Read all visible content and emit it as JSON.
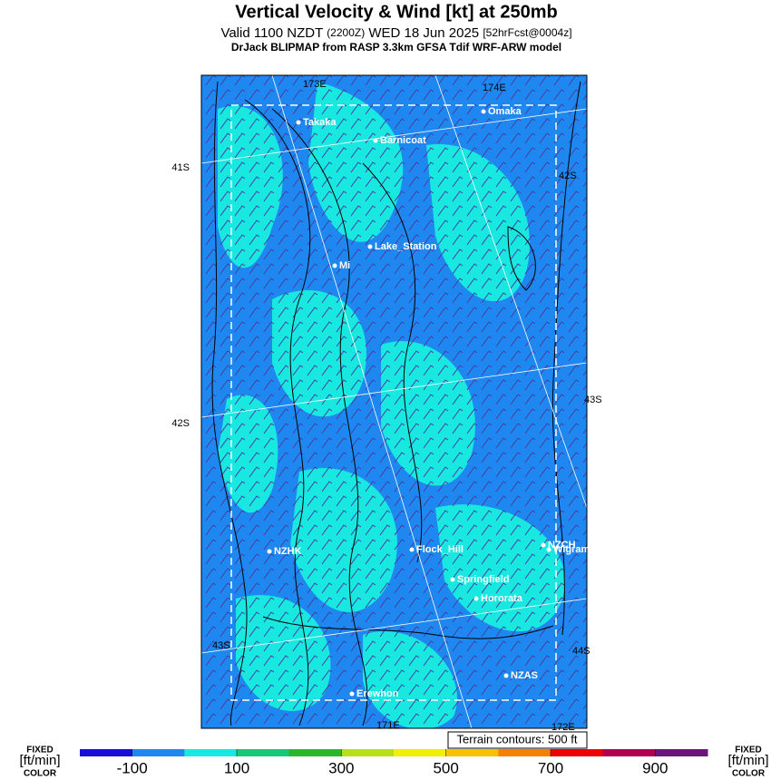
{
  "header": {
    "title": "Vertical Velocity & Wind [kt] at 250mb",
    "subtitle": [
      "Valid 1100 NZDT",
      "(2200Z)",
      "WED 18 Jun 2025",
      "[52hrFcst@0004z]"
    ],
    "model": "DrJack BLIPMAP from RASP 3.3km GFSA Tdif WRF-ARW model"
  },
  "map": {
    "places": [
      "Takaka",
      "Barnicoat",
      "Omaka",
      "Lake_Station",
      "Mi",
      "NZHK",
      "Flock_Hill",
      "Springfield",
      "Hororata",
      "NZCH",
      "Wigram",
      "NZAS",
      "Erewhon"
    ],
    "grid_labels": [
      "41S",
      "42S",
      "43S",
      "42S",
      "43S",
      "44S",
      "173E",
      "174E",
      "171E",
      "172E"
    ],
    "terrain_note": "Terrain contours: 500 ft"
  },
  "colorbar": {
    "range": [
      -200,
      1000
    ],
    "ticks": [
      -100,
      100,
      300,
      500,
      700,
      900
    ],
    "colors": [
      "#1a0fd8",
      "#1e88f0",
      "#19e8e0",
      "#18c878",
      "#28b828",
      "#b8e018",
      "#f0f000",
      "#f8c000",
      "#f88000",
      "#f00000",
      "#b00050",
      "#6a1480"
    ],
    "side_label": [
      "FIXED",
      "[ft/min]",
      "COLOR"
    ]
  }
}
